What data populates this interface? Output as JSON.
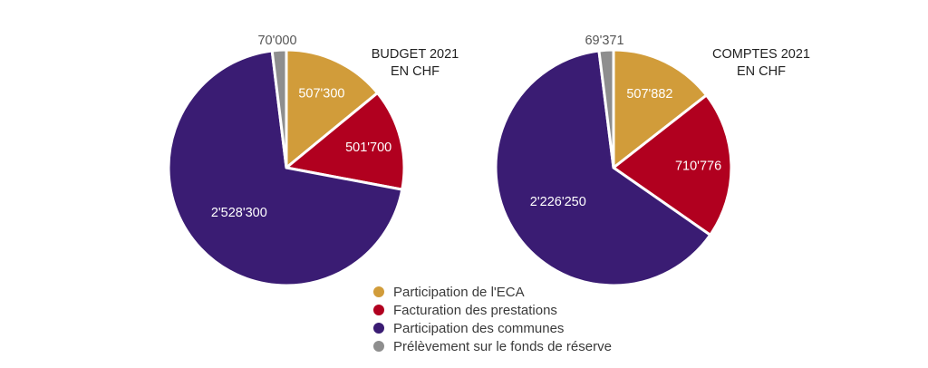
{
  "categories": [
    "Participation de l'ECA",
    "Facturation des prestations",
    "Participation des communes",
    "Prélèvement sur le fonds de réserve"
  ],
  "colors": [
    "#D19C3A",
    "#B1001F",
    "#3A1C73",
    "#8E8E8E"
  ],
  "chart_data": [
    {
      "type": "pie",
      "title": "BUDGET 2021",
      "subtitle": "EN CHF",
      "categories": [
        "Participation de l'ECA",
        "Facturation des prestations",
        "Participation des communes",
        "Prélèvement sur le fonds de réserve"
      ],
      "values": [
        507300,
        501700,
        2528300,
        70000
      ],
      "value_labels": [
        "507'300",
        "501'700",
        "2'528'300",
        "70'000"
      ]
    },
    {
      "type": "pie",
      "title": "COMPTES 2021",
      "subtitle": "EN CHF",
      "categories": [
        "Participation de l'ECA",
        "Facturation des prestations",
        "Participation des communes",
        "Prélèvement sur le fonds de réserve"
      ],
      "values": [
        507882,
        710776,
        2226250,
        69371
      ],
      "value_labels": [
        "507'882",
        "710'776",
        "2'226'250",
        "69'371"
      ]
    }
  ]
}
